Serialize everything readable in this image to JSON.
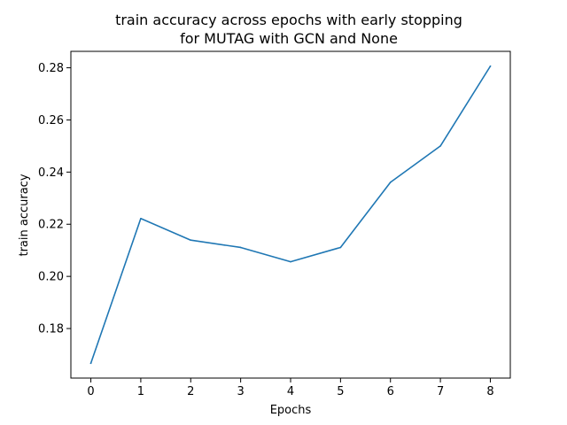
{
  "chart_data": {
    "type": "line",
    "title_lines": [
      "train accuracy across epochs with early stopping",
      "for MUTAG with GCN and None"
    ],
    "xlabel": "Epochs",
    "ylabel": "train accuracy",
    "x": [
      0,
      1,
      2,
      3,
      4,
      5,
      6,
      7,
      8
    ],
    "series": [
      {
        "values": [
          0.1667,
          0.2222,
          0.2139,
          0.2111,
          0.2056,
          0.2111,
          0.2361,
          0.25,
          0.2806
        ],
        "color": "#1f77b4"
      }
    ],
    "xticks": [
      0,
      1,
      2,
      3,
      4,
      5,
      6,
      7,
      8
    ],
    "yticks": [
      0.18,
      0.2,
      0.22,
      0.24,
      0.26,
      0.28
    ],
    "ytick_labels": [
      "0.18",
      "0.20",
      "0.22",
      "0.24",
      "0.26",
      "0.28"
    ],
    "xlim": [
      -0.4,
      8.4
    ],
    "ylim": [
      0.161,
      0.2863
    ],
    "grid": false,
    "legend": "none"
  }
}
